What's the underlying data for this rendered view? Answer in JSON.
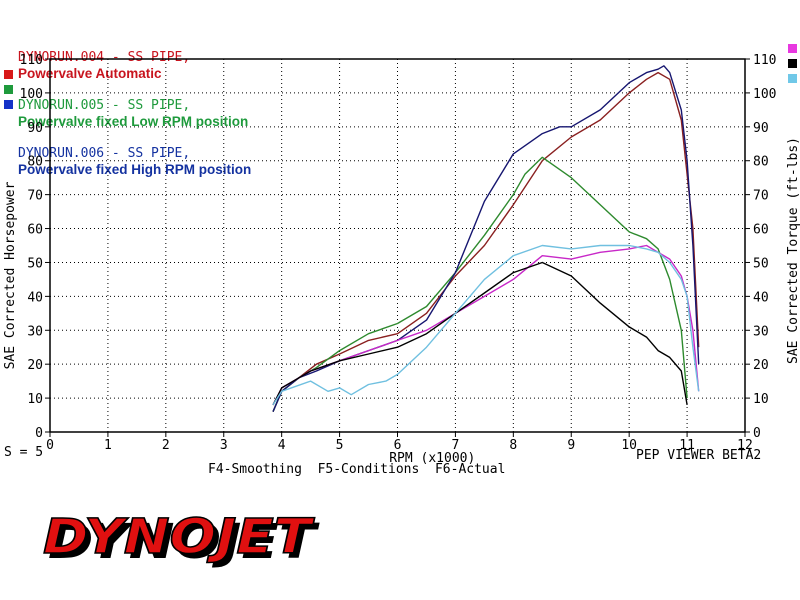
{
  "legend": [
    {
      "run": "DYNORUN.004 - SS PIPE,",
      "desc": "Powervalve Automatic",
      "color": "#c8141e"
    },
    {
      "run": "DYNORUN.005 - SS PIPE,",
      "desc": "Powervalve fixed Low RPM position",
      "color": "#1e9a3c"
    },
    {
      "run": "DYNORUN.006 - SS PIPE,",
      "desc": "Powervalve fixed High RPM position",
      "color": "#1432a0"
    }
  ],
  "status": {
    "smoothing": "S = 5",
    "viewer": "PEP VIEWER BETA2",
    "fkeys": "F4-Smoothing  F5-Conditions  F6-Actual"
  },
  "logo_text": "DYNOJET",
  "chart_data": {
    "type": "line",
    "xlabel": "RPM (x1000)",
    "ylabel_left": "SAE Corrected Horsepower",
    "ylabel_right": "SAE Corrected Torque (ft-lbs)",
    "xlim": [
      0,
      12
    ],
    "ylim": [
      0,
      110
    ],
    "xticks": [
      0,
      1,
      2,
      3,
      4,
      5,
      6,
      7,
      8,
      9,
      10,
      11,
      12
    ],
    "yticks": [
      0,
      10,
      20,
      30,
      40,
      50,
      60,
      70,
      80,
      90,
      100,
      110
    ],
    "grid": "dotted",
    "legend_swatches_left": [
      "#d81818",
      "#1e9a3c",
      "#1432c8"
    ],
    "legend_swatches_right": [
      "#e838e0",
      "#000000",
      "#70c8e8"
    ],
    "series": [
      {
        "name": "DYNORUN.004",
        "measure": "horsepower",
        "color": "#8a2020",
        "x": [
          3.85,
          4.0,
          4.3,
          4.6,
          5.0,
          5.5,
          6.0,
          6.5,
          7.0,
          7.5,
          8.0,
          8.5,
          9.0,
          9.5,
          10.0,
          10.3,
          10.5,
          10.7,
          10.9,
          11.1,
          11.2
        ],
        "y": [
          6,
          12,
          16,
          20,
          23,
          27,
          29,
          35,
          46,
          55,
          67,
          80,
          87,
          92,
          100,
          104,
          106,
          104,
          92,
          60,
          25
        ]
      },
      {
        "name": "DYNORUN.005",
        "measure": "horsepower",
        "color": "#2e8a2e",
        "x": [
          3.85,
          4.0,
          4.3,
          4.6,
          5.0,
          5.5,
          6.0,
          6.5,
          7.0,
          7.5,
          8.0,
          8.2,
          8.5,
          9.0,
          9.5,
          10.0,
          10.3,
          10.5,
          10.7,
          10.9,
          11.0
        ],
        "y": [
          6,
          12,
          16,
          19,
          24,
          29,
          32,
          37,
          47,
          58,
          70,
          76,
          81,
          75,
          67,
          59,
          57,
          54,
          45,
          30,
          10
        ]
      },
      {
        "name": "DYNORUN.006",
        "measure": "horsepower",
        "color": "#161670",
        "x": [
          3.85,
          4.0,
          4.3,
          4.6,
          5.0,
          5.5,
          6.0,
          6.5,
          7.0,
          7.5,
          8.0,
          8.5,
          8.8,
          9.0,
          9.5,
          10.0,
          10.3,
          10.5,
          10.6,
          10.7,
          10.9,
          11.0,
          11.1,
          11.2
        ],
        "y": [
          6,
          12,
          16,
          18,
          21,
          24,
          27,
          33,
          47,
          68,
          82,
          88,
          90,
          90,
          95,
          103,
          106,
          107,
          108,
          106,
          95,
          80,
          55,
          20
        ]
      },
      {
        "name": "DYNORUN.004",
        "measure": "torque",
        "color": "#c828c8",
        "x": [
          3.85,
          4.0,
          4.5,
          5.0,
          5.5,
          6.0,
          6.5,
          7.0,
          7.5,
          8.0,
          8.5,
          9.0,
          9.5,
          10.0,
          10.3,
          10.5,
          10.7,
          10.9,
          11.0,
          11.1,
          11.2
        ],
        "y": [
          8,
          13,
          18,
          21,
          24,
          27,
          30,
          35,
          40,
          45,
          52,
          51,
          53,
          54,
          55,
          53,
          51,
          46,
          40,
          30,
          12
        ]
      },
      {
        "name": "DYNORUN.005",
        "measure": "torque",
        "color": "#000000",
        "x": [
          3.85,
          4.0,
          4.5,
          5.0,
          5.5,
          6.0,
          6.5,
          7.0,
          7.5,
          8.0,
          8.5,
          9.0,
          9.5,
          10.0,
          10.3,
          10.5,
          10.7,
          10.9,
          11.0
        ],
        "y": [
          8,
          13,
          18,
          21,
          23,
          25,
          29,
          35,
          41,
          47,
          50,
          46,
          38,
          31,
          28,
          24,
          22,
          18,
          8
        ]
      },
      {
        "name": "DYNORUN.006",
        "measure": "torque",
        "color": "#70c0e0",
        "x": [
          3.85,
          4.0,
          4.5,
          4.8,
          5.0,
          5.2,
          5.5,
          5.8,
          6.0,
          6.5,
          7.0,
          7.5,
          8.0,
          8.5,
          9.0,
          9.5,
          10.0,
          10.3,
          10.5,
          10.7,
          10.9,
          11.0,
          11.1,
          11.2
        ],
        "y": [
          8,
          12,
          15,
          12,
          13,
          11,
          14,
          15,
          17,
          25,
          35,
          45,
          52,
          55,
          54,
          55,
          55,
          54,
          53,
          50,
          45,
          40,
          25,
          12
        ]
      }
    ]
  }
}
